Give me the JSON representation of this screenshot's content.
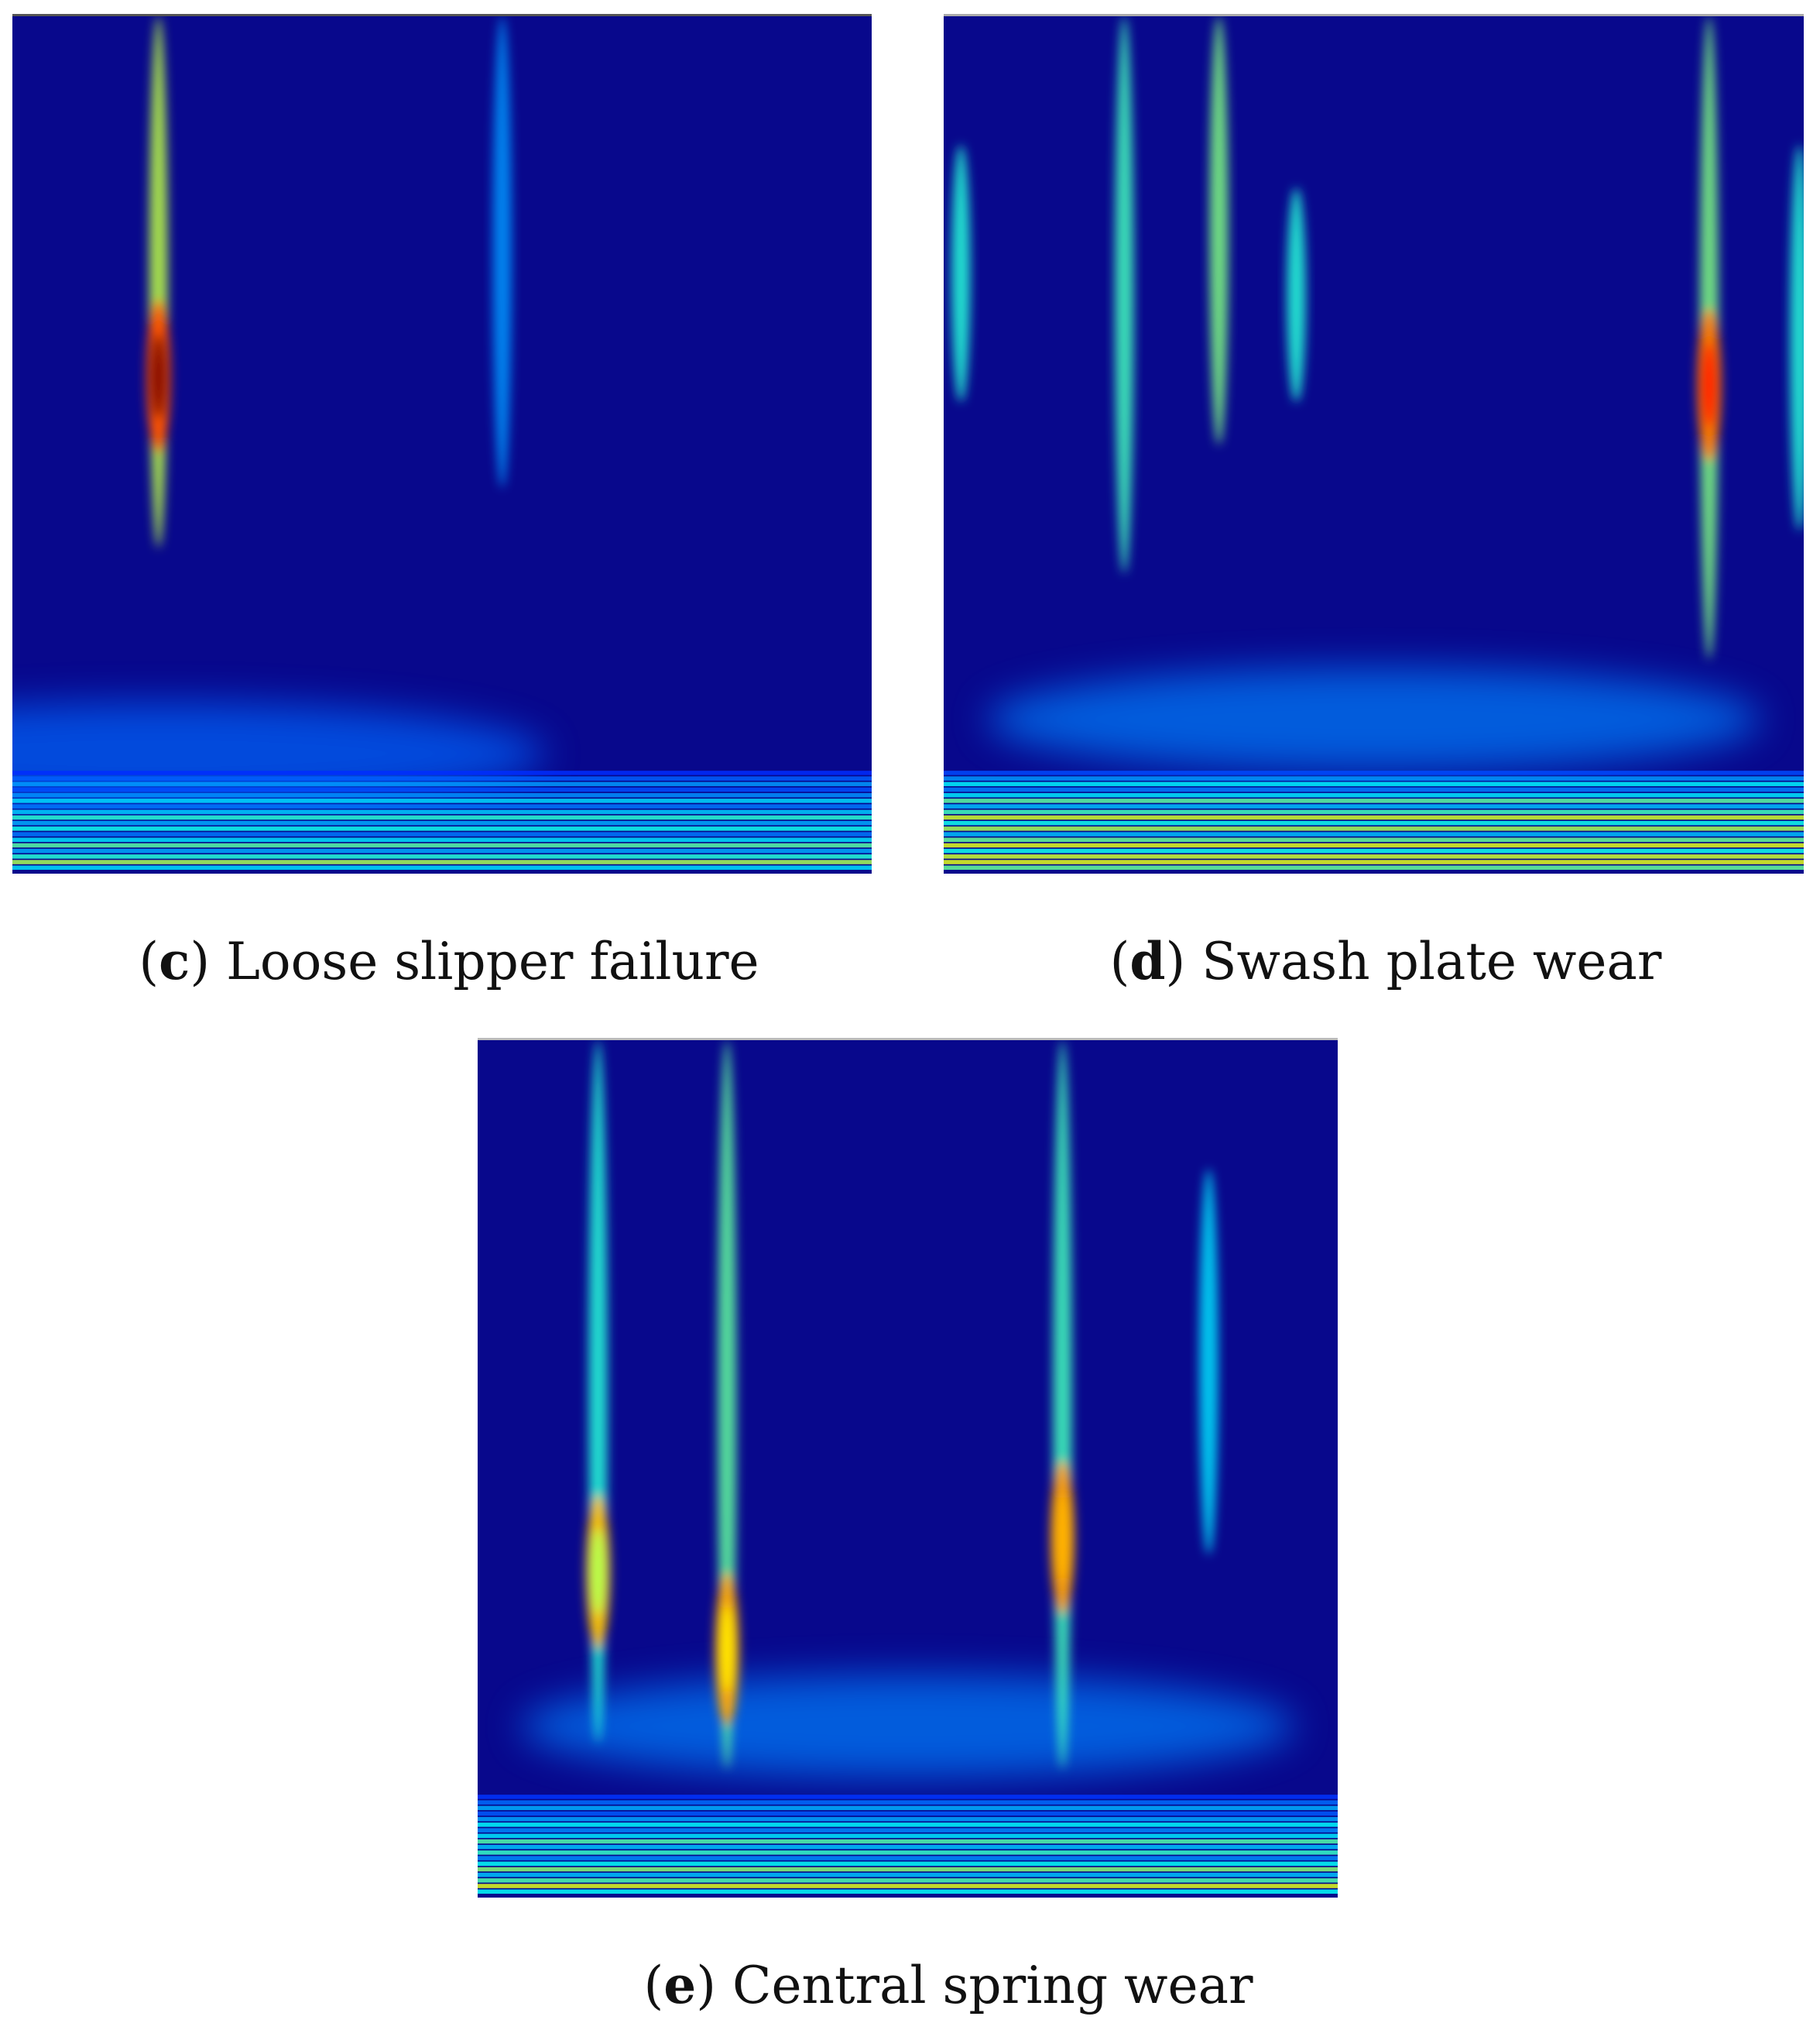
{
  "chart_data": [
    {
      "type": "heatmap",
      "letter": "c",
      "label": "Loose slipper failure",
      "colormap": "jet",
      "background": "#0a0a8a",
      "x_range": [
        0,
        1
      ],
      "y_range": [
        0,
        1
      ],
      "ridges": [
        {
          "x": 0.17,
          "y_top": 0.0,
          "y_bottom": 0.62,
          "intensity": 0.6,
          "hot_center": 0.42,
          "hot_intensity": 1.0
        },
        {
          "x": 0.57,
          "y_top": 0.0,
          "y_bottom": 0.55,
          "intensity": 0.12
        }
      ],
      "bottom_band_intensity": 0.35,
      "low_freq_cloud": {
        "x": 0.17,
        "y": 0.86,
        "intensity": 0.25
      }
    },
    {
      "type": "heatmap",
      "letter": "d",
      "label": "Swash plate wear",
      "colormap": "jet",
      "background": "#0a0a8a",
      "x_range": [
        0,
        1
      ],
      "y_range": [
        0,
        1
      ],
      "ridges": [
        {
          "x": 0.02,
          "y_top": 0.15,
          "y_bottom": 0.45,
          "intensity": 0.35
        },
        {
          "x": 0.21,
          "y_top": 0.0,
          "y_bottom": 0.65,
          "intensity": 0.4
        },
        {
          "x": 0.32,
          "y_top": 0.0,
          "y_bottom": 0.5,
          "intensity": 0.5
        },
        {
          "x": 0.41,
          "y_top": 0.2,
          "y_bottom": 0.45,
          "intensity": 0.35
        },
        {
          "x": 0.89,
          "y_top": 0.0,
          "y_bottom": 0.75,
          "intensity": 0.5,
          "hot_center": 0.43,
          "hot_intensity": 0.85
        },
        {
          "x": 0.995,
          "y_top": 0.15,
          "y_bottom": 0.6,
          "intensity": 0.35
        }
      ],
      "bottom_band_intensity": 0.55,
      "low_freq_cloud": {
        "x": 0.5,
        "y": 0.82,
        "intensity": 0.3
      }
    },
    {
      "type": "heatmap",
      "letter": "e",
      "label": "Central spring wear",
      "colormap": "jet",
      "background": "#0a0a8a",
      "x_range": [
        0,
        1
      ],
      "y_range": [
        0,
        1
      ],
      "ridges": [
        {
          "x": 0.14,
          "y_top": 0.0,
          "y_bottom": 0.82,
          "intensity": 0.35,
          "hot_center": 0.62,
          "hot_intensity": 0.55
        },
        {
          "x": 0.29,
          "y_top": 0.0,
          "y_bottom": 0.85,
          "intensity": 0.45,
          "hot_center": 0.71,
          "hot_intensity": 0.65
        },
        {
          "x": 0.68,
          "y_top": 0.0,
          "y_bottom": 0.85,
          "intensity": 0.4,
          "hot_center": 0.58,
          "hot_intensity": 0.7
        },
        {
          "x": 0.85,
          "y_top": 0.15,
          "y_bottom": 0.6,
          "intensity": 0.25
        }
      ],
      "bottom_band_intensity": 0.4,
      "low_freq_cloud": {
        "x": 0.5,
        "y": 0.8,
        "intensity": 0.3
      }
    }
  ]
}
